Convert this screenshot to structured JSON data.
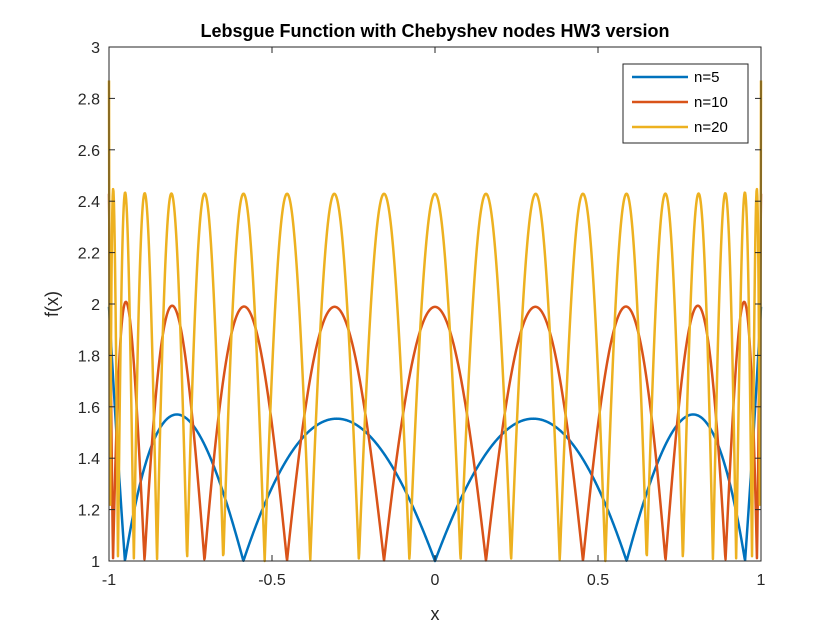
{
  "chart_data": {
    "type": "line",
    "title": "Lebsgue Function with Chebyshev nodes HW3 version",
    "xlabel": "x",
    "ylabel": "f(x)",
    "xlim": [
      -1,
      1
    ],
    "ylim": [
      1,
      3
    ],
    "x_ticks": [
      "-1",
      "-0.5",
      "0",
      "0.5",
      "1"
    ],
    "y_ticks": [
      "1",
      "1.2",
      "1.4",
      "1.6",
      "1.8",
      "2",
      "2.2",
      "2.4",
      "2.6",
      "2.8",
      "3"
    ],
    "grid": false,
    "legend_position": "top-right",
    "series": [
      {
        "name": "n=5",
        "n": 5,
        "color": "#0072BD"
      },
      {
        "name": "n=10",
        "n": 10,
        "color": "#D95319"
      },
      {
        "name": "n=20",
        "n": 20,
        "color": "#EDB120"
      }
    ]
  }
}
